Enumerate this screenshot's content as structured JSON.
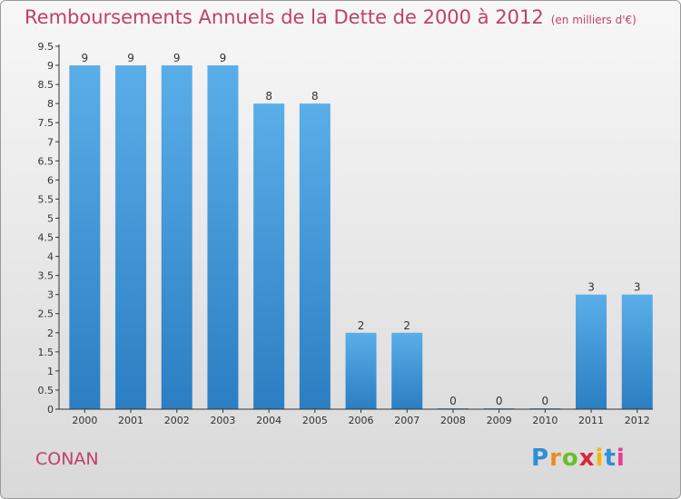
{
  "title": "Remboursements Annuels de la Dette de 2000 à 2012",
  "unit_note": "(en milliers d'€)",
  "city": "CONAN",
  "logo": "Proxiti",
  "colors": {
    "accent": "#c0406a",
    "bar_top": "#5aaee8",
    "bar_bottom": "#2b7ec2",
    "axis": "#333333"
  },
  "chart_data": {
    "type": "bar",
    "title": "Remboursements Annuels de la Dette de 2000 à 2012",
    "xlabel": "",
    "ylabel": "",
    "categories": [
      "2000",
      "2001",
      "2002",
      "2003",
      "2004",
      "2005",
      "2006",
      "2007",
      "2008",
      "2009",
      "2010",
      "2011",
      "2012"
    ],
    "values": [
      9,
      9,
      9,
      9,
      8,
      8,
      2,
      2,
      0,
      0,
      0,
      3,
      3
    ],
    "data_labels": [
      "9",
      "9",
      "9",
      "9",
      "8",
      "8",
      "2",
      "2",
      "0",
      "0",
      "0",
      "3",
      "3"
    ],
    "ylim": [
      0,
      9.5
    ],
    "yticks": [
      0,
      0.5,
      1,
      1.5,
      2,
      2.5,
      3,
      3.5,
      4,
      4.5,
      5,
      5.5,
      6,
      6.5,
      7,
      7.5,
      8,
      8.5,
      9,
      9.5
    ],
    "ytick_labels": [
      "0",
      "0.5",
      "1",
      "1.5",
      "2",
      "2.5",
      "3",
      "3.5",
      "4",
      "4.5",
      "5",
      "5.5",
      "6",
      "6.5",
      "7",
      "7.5",
      "8",
      "8.5",
      "9",
      "9.5"
    ],
    "grid": false
  }
}
